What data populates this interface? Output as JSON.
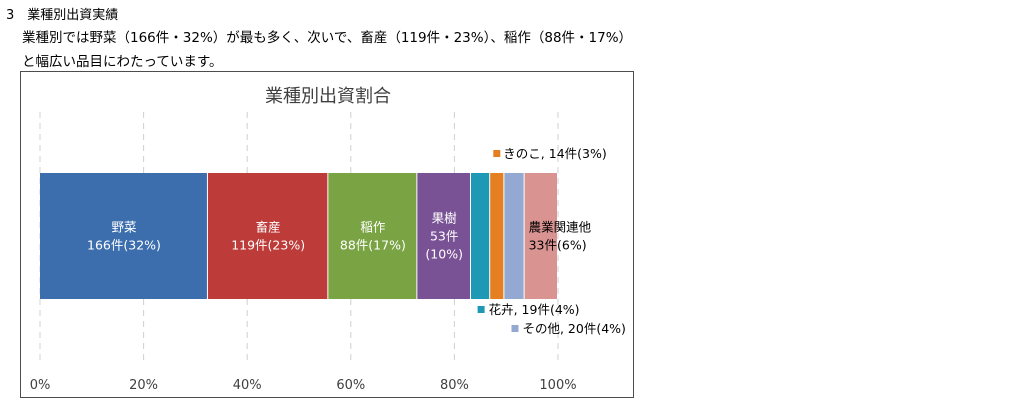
{
  "section": {
    "heading": "3　業種別出資実績",
    "paragraph_line1": "業種別では野菜（166件・32%）が最も多く、次いで、畜産（119件・23%）、稲作（88件・17%）",
    "paragraph_line2": "と幅広い品目にわたっています。"
  },
  "chart_data": {
    "type": "bar",
    "orientation": "horizontal-stacked-100",
    "title": "業種別出資割合",
    "xlim": [
      0,
      100
    ],
    "x_ticks": [
      "0%",
      "20%",
      "40%",
      "60%",
      "80%",
      "100%"
    ],
    "grid": "vertical-dashed",
    "series": [
      {
        "name": "野菜",
        "count": 166,
        "percent": 32,
        "color": "#3c6ead",
        "label_lines": [
          "野菜",
          "166件(32%)"
        ],
        "label_position": "inside"
      },
      {
        "name": "畜産",
        "count": 119,
        "percent": 23,
        "color": "#bd3b39",
        "label_lines": [
          "畜産",
          "119件(23%)"
        ],
        "label_position": "inside"
      },
      {
        "name": "稲作",
        "count": 88,
        "percent": 17,
        "color": "#7aa444",
        "label_lines": [
          "稲作",
          "88件(17%)"
        ],
        "label_position": "inside"
      },
      {
        "name": "果樹",
        "count": 53,
        "percent": 10,
        "color": "#795295",
        "label_lines": [
          "果樹",
          "53件",
          "(10%)"
        ],
        "label_position": "inside"
      },
      {
        "name": "花卉",
        "count": 19,
        "percent": 4,
        "color": "#1d99b5",
        "label_lines": [
          "花卉, 19件(4%)"
        ],
        "label_position": "below"
      },
      {
        "name": "きのこ",
        "count": 14,
        "percent": 3,
        "color": "#e57f22",
        "label_lines": [
          "きのこ, 14件(3%)"
        ],
        "label_position": "above"
      },
      {
        "name": "その他",
        "count": 20,
        "percent": 4,
        "color": "#93a9d2",
        "label_lines": [
          "その他, 20件(4%)"
        ],
        "label_position": "below"
      },
      {
        "name": "農業関連他",
        "count": 33,
        "percent": 6,
        "color": "#d99391",
        "label_lines": [
          "農業関連他",
          "33件(6%)"
        ],
        "label_position": "inside-right"
      }
    ]
  }
}
